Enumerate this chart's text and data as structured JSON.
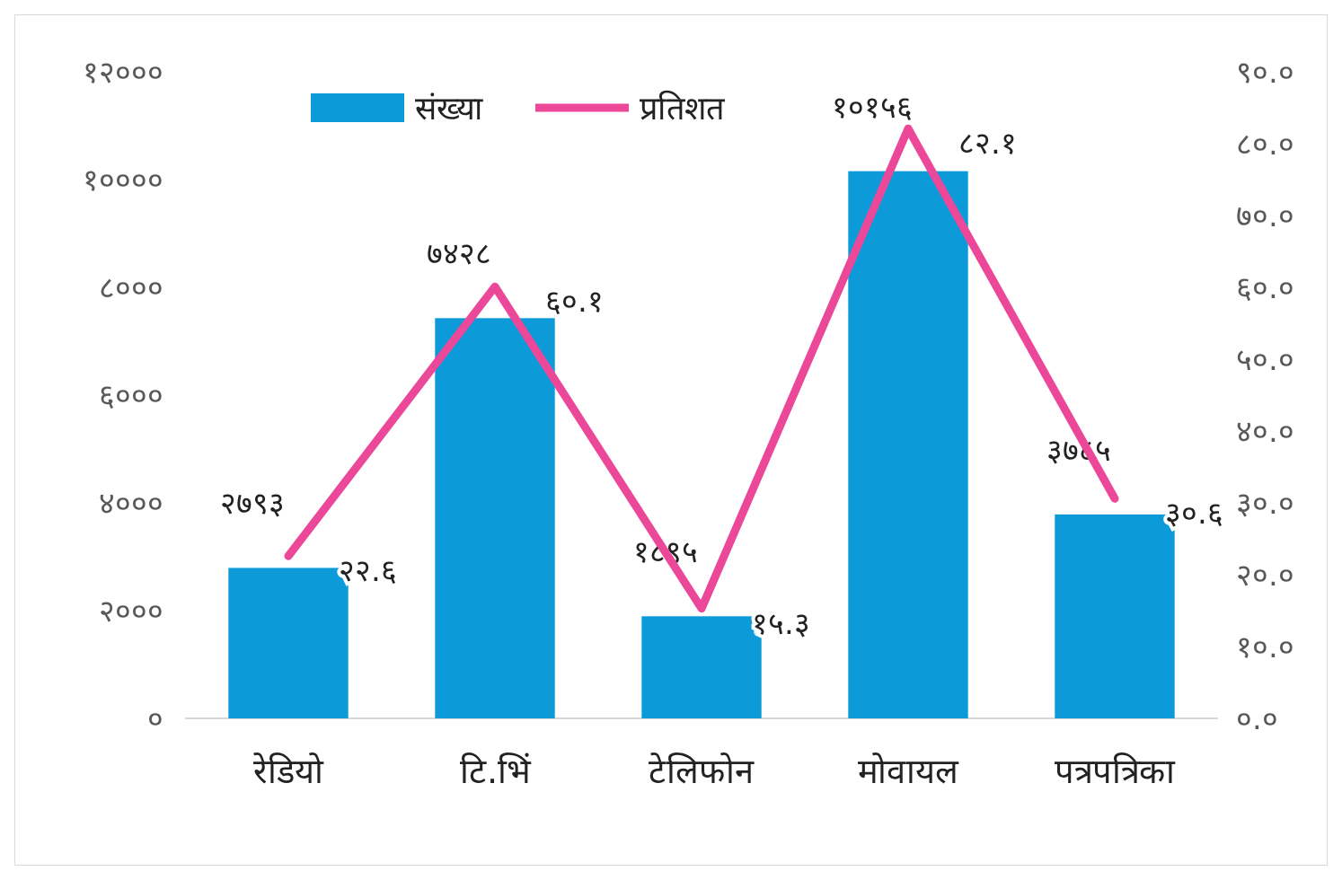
{
  "chart_data": {
    "type": "bar",
    "categories": [
      "रेडियो",
      "टि.भिं",
      "टेलिफोन",
      "मोवायल",
      "पत्रपत्रिका"
    ],
    "series": [
      {
        "name": "संख्या",
        "color": "#0d9ad8",
        "values": [
          2793,
          7428,
          1895,
          10156,
          3785
        ],
        "value_labels": [
          "२७९३",
          "७४२८",
          "१८९५",
          "१०१५६",
          "३७८५"
        ]
      },
      {
        "name": "प्रतिशत",
        "type": "line",
        "axis": "y2",
        "color": "#ec4899",
        "values": [
          22.6,
          60.1,
          15.3,
          82.1,
          30.6
        ],
        "value_labels": [
          "२२.६",
          "६०.१",
          "१५.३",
          "८२.१",
          "३०.६"
        ]
      }
    ],
    "ylim": [
      0,
      12000
    ],
    "yticks": [
      {
        "value": 0,
        "label": "०"
      },
      {
        "value": 2000,
        "label": "२०००"
      },
      {
        "value": 4000,
        "label": "४०००"
      },
      {
        "value": 6000,
        "label": "६०००"
      },
      {
        "value": 8000,
        "label": "८०००"
      },
      {
        "value": 10000,
        "label": "१००००"
      },
      {
        "value": 12000,
        "label": "१२०००"
      }
    ],
    "y2lim": [
      0,
      90
    ],
    "y2ticks": [
      {
        "value": 0,
        "label": "०.०"
      },
      {
        "value": 10,
        "label": "१०.०"
      },
      {
        "value": 20,
        "label": "२०.०"
      },
      {
        "value": 30,
        "label": "३०.०"
      },
      {
        "value": 40,
        "label": "४०.०"
      },
      {
        "value": 50,
        "label": "५०.०"
      },
      {
        "value": 60,
        "label": "६०.०"
      },
      {
        "value": 70,
        "label": "७०.०"
      },
      {
        "value": 80,
        "label": "८०.०"
      },
      {
        "value": 90,
        "label": "९०.०"
      }
    ],
    "legend": "top",
    "grid": false,
    "marker": "none",
    "line_style": "solid"
  }
}
